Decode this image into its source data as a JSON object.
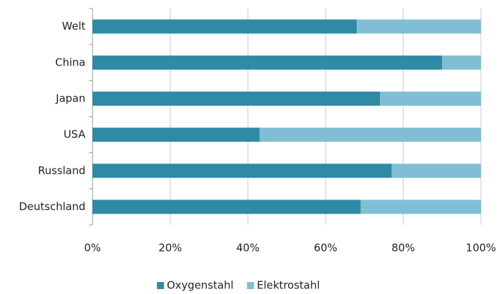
{
  "chart_data": {
    "type": "bar",
    "orientation": "horizontal",
    "stacked": true,
    "categories": [
      "Welt",
      "China",
      "Japan",
      "USA",
      "Russland",
      "Deutschland"
    ],
    "series": [
      {
        "name": "Oxygenstahl",
        "color": "#2e8aa5",
        "values": [
          68,
          90,
          74,
          43,
          77,
          69
        ]
      },
      {
        "name": "Elektrostahl",
        "color": "#80bfd3",
        "values": [
          32,
          10,
          26,
          57,
          23,
          31
        ]
      }
    ],
    "xlim": [
      0,
      100
    ],
    "xticks": [
      {
        "value": 0,
        "label": "0%"
      },
      {
        "value": 20,
        "label": "20%"
      },
      {
        "value": 40,
        "label": "40%"
      },
      {
        "value": 60,
        "label": "60%"
      },
      {
        "value": 80,
        "label": "80%"
      },
      {
        "value": 100,
        "label": "100%"
      }
    ],
    "grid": true,
    "legend": "bottom"
  }
}
